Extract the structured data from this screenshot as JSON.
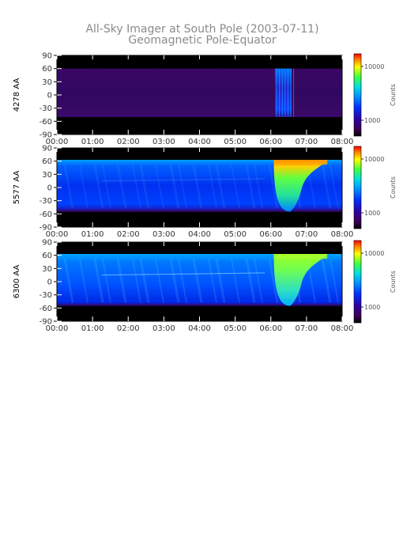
{
  "chart_data": {
    "type": "heatmap",
    "title": "All-Sky Imager at South Pole (2003-07-11)",
    "subtitle": "Geomagnetic Pole-Equator",
    "x_ticks": [
      "00:00",
      "01:00",
      "02:00",
      "03:00",
      "04:00",
      "05:00",
      "06:00",
      "07:00",
      "08:00"
    ],
    "xlim": [
      "00:00",
      "08:00"
    ],
    "y_ticks": [
      90,
      60,
      30,
      0,
      -30,
      -60,
      -90
    ],
    "ylim": [
      -90,
      90
    ],
    "colorbar": {
      "label": "Counts",
      "ticks": [
        10000,
        1000
      ],
      "tick_labels": [
        "10000",
        "1000"
      ],
      "scale": "log"
    },
    "colormap": [
      "#000000",
      "#3a0050",
      "#3000a0",
      "#0030ff",
      "#0090ff",
      "#00e0e0",
      "#40ff40",
      "#ffff00",
      "#ff8000",
      "#ff0000"
    ],
    "panels": [
      {
        "ylabel": "4278 AA",
        "data_lat_range": [
          -50,
          60
        ],
        "level": "low",
        "burst_window": [
          "06:07",
          "06:35"
        ]
      },
      {
        "ylabel": "5577 AA",
        "data_lat_range": [
          -55,
          63
        ],
        "level": "medium",
        "burst_window": [
          "06:05",
          "07:35"
        ]
      },
      {
        "ylabel": "6300 AA",
        "data_lat_range": [
          -55,
          63
        ],
        "level": "medium",
        "burst_window": [
          "06:05",
          "07:35"
        ]
      }
    ]
  }
}
